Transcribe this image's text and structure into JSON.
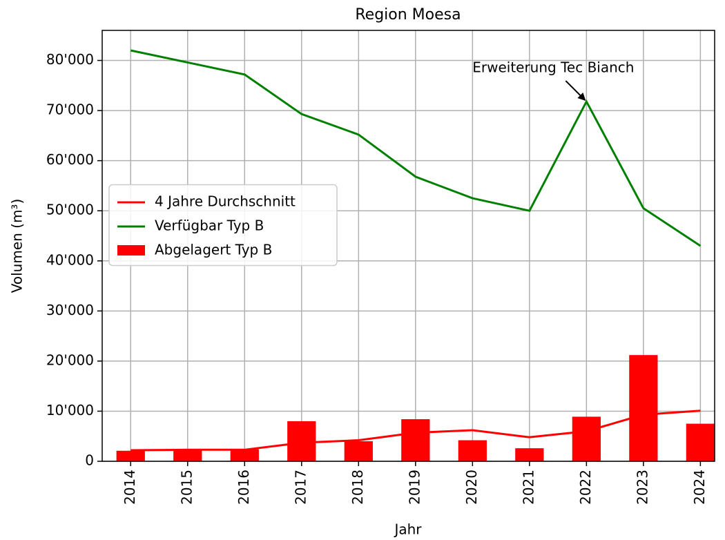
{
  "chart_data": {
    "type": "combo",
    "title": "Region Moesa",
    "xlabel": "Jahr",
    "ylabel": "Volumen (m³)",
    "x": [
      2014,
      2015,
      2016,
      2017,
      2018,
      2019,
      2020,
      2021,
      2022,
      2023,
      2024
    ],
    "xlim": [
      2013.5,
      2024.25
    ],
    "xticks": [
      2014,
      2015,
      2016,
      2017,
      2018,
      2019,
      2020,
      2021,
      2022,
      2023,
      2024
    ],
    "ylim": [
      0,
      86000
    ],
    "yticks": [
      0,
      {
        "value": 10000,
        "label": "10'000"
      },
      {
        "value": 20000,
        "label": "20'000"
      },
      {
        "value": 30000,
        "label": "30'000"
      },
      {
        "value": 40000,
        "label": "40'000"
      },
      {
        "value": 50000,
        "label": "50'000"
      },
      {
        "value": 60000,
        "label": "60'000"
      },
      {
        "value": 70000,
        "label": "70'000"
      },
      {
        "value": 80000,
        "label": "80'000"
      }
    ],
    "grid": true,
    "legend": "center left",
    "series": [
      {
        "name": "4 Jahre Durchschnitt",
        "type": "line",
        "color": "#ff0000",
        "values": [
          2200,
          2300,
          2300,
          3700,
          4200,
          5700,
          6200,
          4800,
          6000,
          9300,
          10100
        ]
      },
      {
        "name": "Verfügbar Typ B",
        "type": "line",
        "color": "#008000",
        "values": [
          82000,
          79600,
          77200,
          69300,
          65200,
          56800,
          52500,
          50000,
          71800,
          50500,
          43000
        ]
      },
      {
        "name": "Abgelagert Typ B",
        "type": "bar",
        "color": "#ff0000",
        "values": [
          2100,
          2400,
          2400,
          8000,
          4000,
          8400,
          4200,
          2600,
          8900,
          21200,
          7500
        ]
      }
    ],
    "annotations": [
      {
        "text": "Erweiterung Tec Bianch",
        "x": 2022,
        "y": 71800
      }
    ]
  }
}
